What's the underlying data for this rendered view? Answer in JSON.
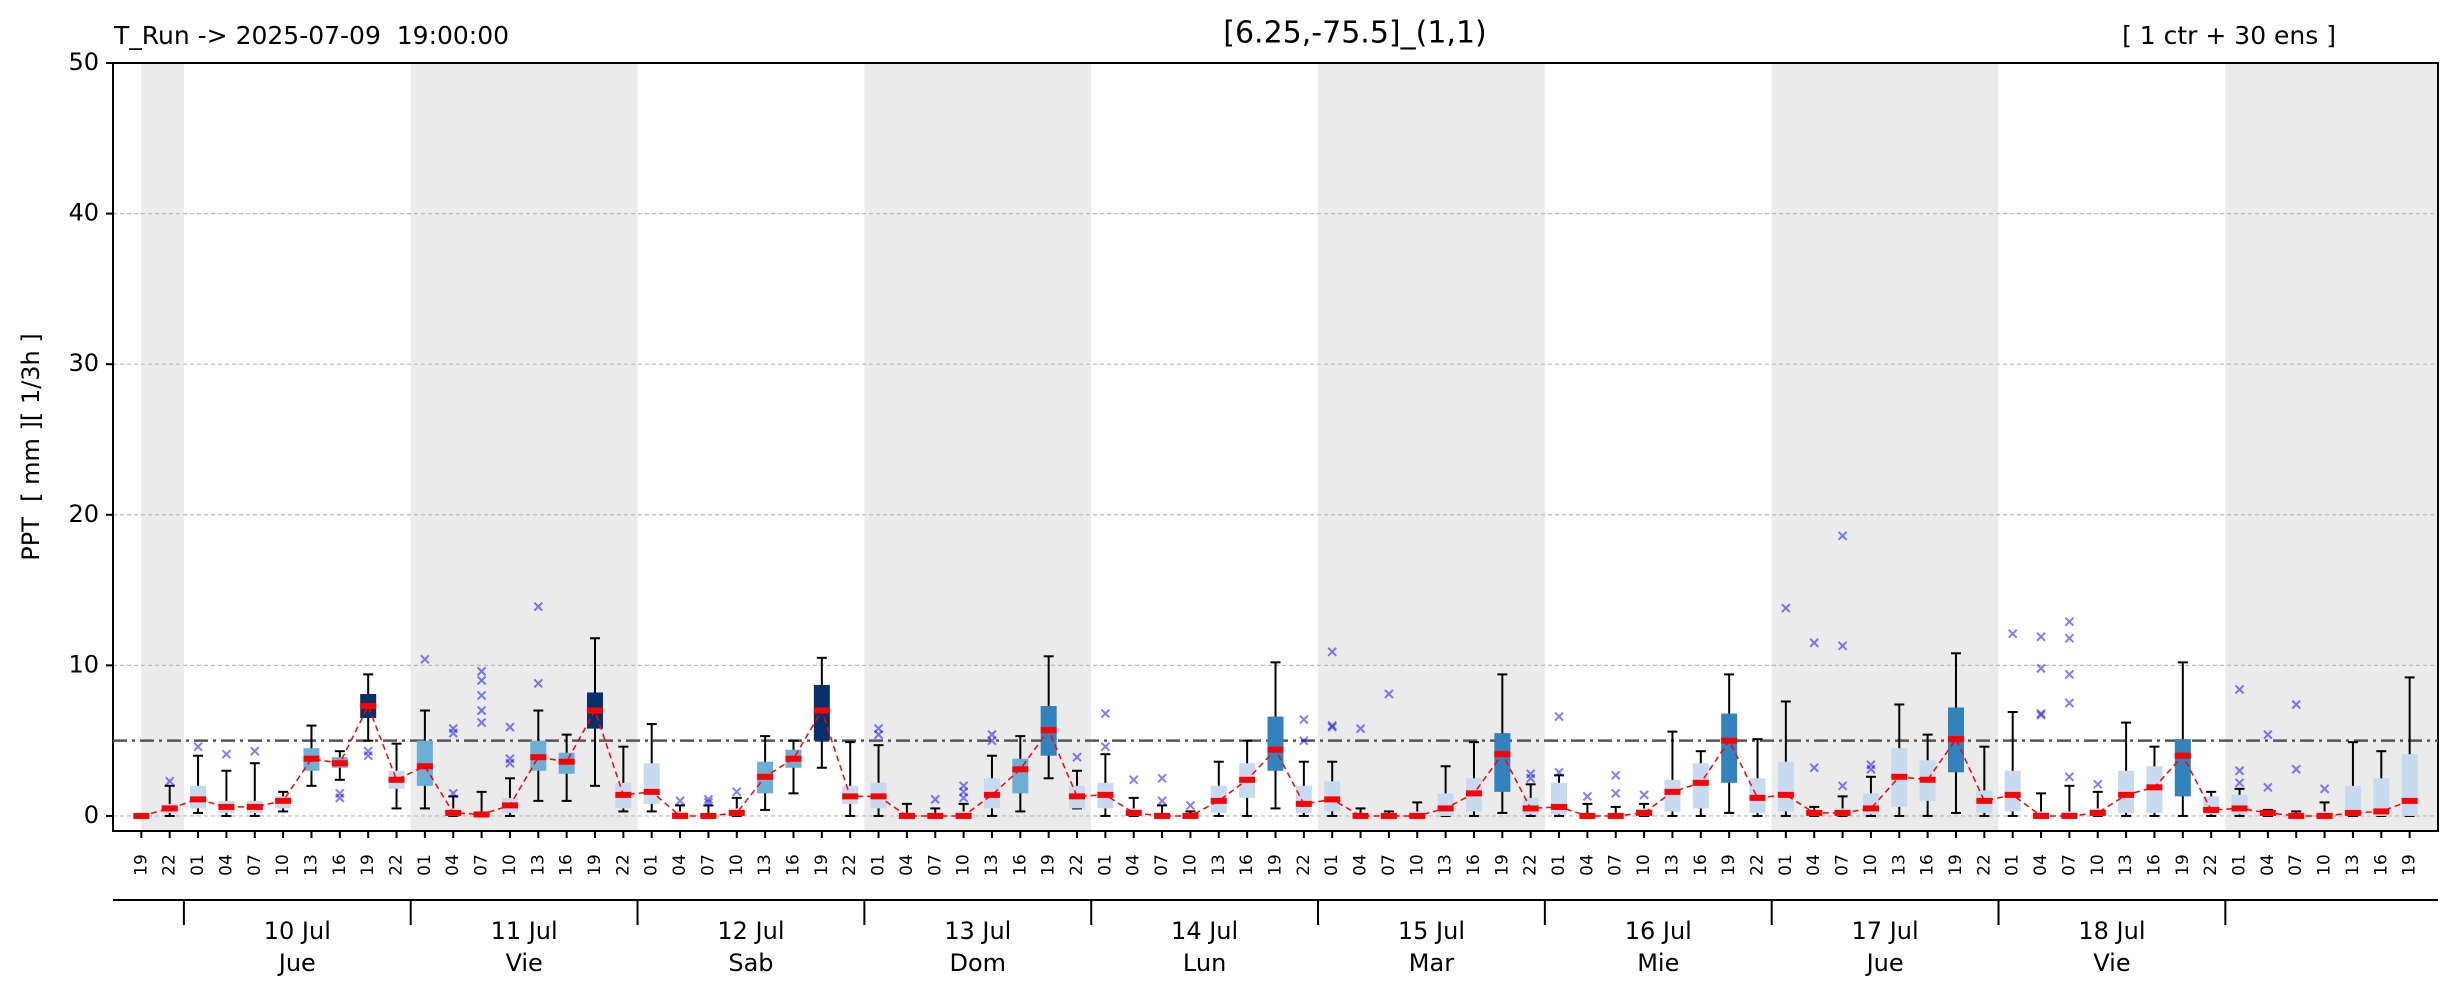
{
  "chart_data": {
    "type": "box",
    "title": "[6.25,-75.5]_(1,1)",
    "run_label": "T_Run -> 2025-07-09  19:00:00",
    "ensemble_label": "[ 1 ctr + 30 ens ]",
    "y_label": "PPT  [ mm ][ 1/3h ]",
    "ylim": [
      -1,
      50
    ],
    "yticks": [
      0,
      10,
      20,
      30,
      40,
      50
    ],
    "grid": true,
    "threshold": 5,
    "threshold_color": "#555555",
    "median_color": "#ff0000",
    "outlier_color": "#0000ff",
    "whisker_color": "#000000",
    "categories": [
      "19",
      "22",
      "01",
      "04",
      "07",
      "10",
      "13",
      "16",
      "19",
      "22",
      "01",
      "04",
      "07",
      "10",
      "13",
      "16",
      "19",
      "22",
      "01",
      "04",
      "07",
      "10",
      "13",
      "16",
      "19",
      "22",
      "01",
      "04",
      "07",
      "10",
      "13",
      "16",
      "19",
      "22",
      "01",
      "04",
      "07",
      "10",
      "13",
      "16",
      "19",
      "22",
      "01",
      "04",
      "07",
      "10",
      "13",
      "16",
      "19",
      "22",
      "01",
      "04",
      "07",
      "10",
      "13",
      "16",
      "19",
      "22",
      "01",
      "04",
      "07",
      "10",
      "13",
      "16",
      "19",
      "22",
      "01",
      "04",
      "07",
      "10",
      "13",
      "16",
      "19",
      "22",
      "01",
      "04",
      "07",
      "10",
      "13",
      "16",
      "19"
    ],
    "days": [
      {
        "date": "10 Jul",
        "weekday": "Jue"
      },
      {
        "date": "11 Jul",
        "weekday": "Vie"
      },
      {
        "date": "12 Jul",
        "weekday": "Sab"
      },
      {
        "date": "13 Jul",
        "weekday": "Dom"
      },
      {
        "date": "14 Jul",
        "weekday": "Lun"
      },
      {
        "date": "15 Jul",
        "weekday": "Mar"
      },
      {
        "date": "16 Jul",
        "weekday": "Mie"
      },
      {
        "date": "17 Jul",
        "weekday": "Jue"
      },
      {
        "date": "18 Jul",
        "weekday": "Vie"
      }
    ],
    "median": [
      0,
      0.5,
      1.1,
      0.6,
      0.6,
      1,
      3.8,
      3.5,
      7.3,
      2.4,
      3.3,
      0.2,
      0.1,
      0.7,
      3.9,
      3.6,
      7,
      1.4,
      1.6,
      0,
      0,
      0.2,
      2.6,
      3.8,
      7,
      1.3,
      1.3,
      0,
      0,
      0,
      1.4,
      3.1,
      5.7,
      1.3,
      1.4,
      0.2,
      0,
      0,
      1,
      2.4,
      4.4,
      0.8,
      1.1,
      0,
      0,
      0,
      0.5,
      1.5,
      4.1,
      0.5,
      0.6,
      0,
      0,
      0.2,
      1.6,
      2.2,
      5,
      1.2,
      1.4,
      0.2,
      0.2,
      0.5,
      2.6,
      2.4,
      5.1,
      1,
      1.4,
      0,
      0,
      0.2,
      1.4,
      1.9,
      4,
      0.4,
      0.5,
      0.2,
      0,
      0,
      0.2,
      0.3,
      1
    ],
    "q1": [
      0,
      0.2,
      0.5,
      0.2,
      0.2,
      0.5,
      3,
      3.2,
      6.5,
      1.8,
      2,
      0,
      0,
      0.2,
      3,
      2.8,
      5.8,
      0.5,
      0.8,
      0,
      0,
      0,
      1.5,
      3.2,
      5,
      0.8,
      0.5,
      0,
      0,
      0,
      0.5,
      1.5,
      4,
      0.5,
      0.5,
      0,
      0,
      0,
      0.2,
      1.2,
      3,
      0.2,
      0.3,
      0,
      0,
      0,
      0,
      0.3,
      1.6,
      0.1,
      0.1,
      0,
      0,
      0,
      0.3,
      0.5,
      2.2,
      0.2,
      0.3,
      0,
      0,
      0.1,
      0.6,
      1,
      2.9,
      0.2,
      0.3,
      0,
      0,
      0,
      0.2,
      0.2,
      1.3,
      0.1,
      0.1,
      0,
      0,
      0,
      0,
      0,
      0
    ],
    "q3": [
      0,
      0.8,
      2,
      1,
      1,
      1.3,
      4.5,
      3.9,
      8.1,
      3,
      5,
      0.5,
      0.3,
      1.2,
      5,
      4.2,
      8.2,
      2.2,
      3.5,
      0.3,
      0.2,
      0.5,
      3.6,
      4.4,
      8.7,
      2,
      2.2,
      0.2,
      0.2,
      0.3,
      2.5,
      3.8,
      7.3,
      2,
      2.2,
      0.5,
      0.2,
      0.1,
      2,
      3.5,
      6.6,
      2,
      2.3,
      0.2,
      0.1,
      0.3,
      1.5,
      2.5,
      5.5,
      1.2,
      2.2,
      0.2,
      0.2,
      0.5,
      2.4,
      3.5,
      6.8,
      2.5,
      3.6,
      0.4,
      0.5,
      1.5,
      4.5,
      3.7,
      7.2,
      1.7,
      3,
      0.3,
      0.3,
      0.5,
      3,
      3.3,
      5.1,
      1.3,
      1.4,
      0.2,
      0.1,
      0.3,
      2,
      2.5,
      4.1
    ],
    "whisker_low": [
      0,
      0,
      0.2,
      0,
      0,
      0.3,
      2,
      2.4,
      5,
      0.5,
      0.5,
      0,
      0,
      0,
      1,
      1,
      2,
      0.3,
      0.3,
      0,
      0,
      0,
      0.4,
      1.5,
      3.2,
      0,
      0,
      0,
      0,
      0,
      0,
      0.3,
      2.5,
      0.5,
      0,
      0,
      0,
      0,
      0,
      0,
      0.5,
      0,
      0,
      0,
      0,
      0,
      0,
      0,
      0.2,
      0,
      0,
      0,
      0,
      0,
      0,
      0,
      0.2,
      0,
      0,
      0,
      0,
      0,
      0,
      0,
      0.2,
      0,
      0,
      0,
      0,
      0,
      0,
      0,
      0,
      0,
      0,
      0,
      0,
      0,
      0,
      0,
      0
    ],
    "whisker_high": [
      0,
      2,
      4,
      3,
      3.5,
      1.6,
      6,
      4.3,
      9.4,
      4.8,
      7,
      1.3,
      1.6,
      2.5,
      7,
      5.4,
      11.8,
      4.6,
      6.1,
      0.7,
      0.7,
      1.2,
      5.3,
      5,
      10.5,
      4.9,
      4.7,
      0.8,
      0.5,
      0.8,
      4,
      5.3,
      10.6,
      3,
      4.1,
      1.2,
      0.7,
      0.3,
      3.6,
      5,
      10.2,
      3.6,
      3.6,
      0.5,
      0.3,
      0.9,
      3.3,
      4.9,
      9.4,
      2.1,
      2.7,
      0.8,
      0.6,
      0.8,
      5.6,
      4.3,
      9.4,
      5.1,
      7.6,
      0.6,
      1.3,
      2.6,
      7.4,
      5.4,
      10.8,
      4.6,
      6.9,
      1.5,
      2,
      1.6,
      6.2,
      4.6,
      10.2,
      1.6,
      1.8,
      0.4,
      0.3,
      0.9,
      4.9,
      4.3,
      9.2
    ],
    "outliers": [
      [],
      [
        2.3
      ],
      [
        4.6
      ],
      [
        4.1
      ],
      [
        4.3
      ],
      [],
      [],
      [
        1.2,
        1.5
      ],
      [
        4,
        4.3
      ],
      [],
      [
        10.4
      ],
      [
        1.5,
        5.5,
        5.8
      ],
      [
        6.2,
        7,
        8,
        9,
        9.6
      ],
      [
        3.5,
        3.8,
        5.9
      ],
      [
        8.8,
        13.9
      ],
      [],
      [],
      [],
      [],
      [
        1
      ],
      [
        0.9,
        1.1
      ],
      [
        1.6
      ],
      [],
      [],
      [],
      [],
      [
        5.4,
        5.8
      ],
      [],
      [
        1.1
      ],
      [
        1.2,
        1.6,
        2
      ],
      [
        5,
        5.4
      ],
      [],
      [],
      [
        3.9
      ],
      [
        4.6,
        6.8
      ],
      [
        2.4
      ],
      [
        1,
        2.5
      ],
      [
        0.7
      ],
      [],
      [],
      [],
      [
        5,
        6.4
      ],
      [
        5.9,
        6,
        10.9
      ],
      [
        5.8
      ],
      [
        8.1
      ],
      [],
      [],
      [],
      [],
      [
        2.5,
        2.8
      ],
      [
        2.9,
        6.6
      ],
      [
        1.3
      ],
      [
        1.5,
        2.7
      ],
      [
        1.4
      ],
      [],
      [],
      [],
      [],
      [
        13.8
      ],
      [
        3.2,
        11.5
      ],
      [
        2,
        11.3,
        18.6
      ],
      [
        3.1,
        3.4
      ],
      [],
      [],
      [],
      [],
      [
        12.1
      ],
      [
        6.7,
        6.8,
        9.8,
        11.9
      ],
      [
        2.6,
        7.5,
        9.4,
        11.8,
        12.9
      ],
      [
        2.1
      ],
      [],
      [],
      [],
      [],
      [
        2.2,
        3,
        8.4
      ],
      [
        1.9,
        5.4
      ],
      [
        3.1,
        7.4
      ],
      [
        1.8
      ],
      [],
      [],
      []
    ],
    "colors": [
      "#c6dbef",
      "#c6dbef",
      "#c6dbef",
      "#c6dbef",
      "#c6dbef",
      "#c6dbef",
      "#6baed6",
      "#6baed6",
      "#08306b",
      "#c6dbef",
      "#6baed6",
      "#c6dbef",
      "#c6dbef",
      "#c6dbef",
      "#6baed6",
      "#6baed6",
      "#08306b",
      "#c6dbef",
      "#c6dbef",
      "#c6dbef",
      "#c6dbef",
      "#c6dbef",
      "#6baed6",
      "#6baed6",
      "#08306b",
      "#c6dbef",
      "#c6dbef",
      "#c6dbef",
      "#c6dbef",
      "#c6dbef",
      "#c6dbef",
      "#6baed6",
      "#3182bd",
      "#c6dbef",
      "#c6dbef",
      "#c6dbef",
      "#c6dbef",
      "#c6dbef",
      "#c6dbef",
      "#c6dbef",
      "#3182bd",
      "#c6dbef",
      "#c6dbef",
      "#c6dbef",
      "#c6dbef",
      "#c6dbef",
      "#c6dbef",
      "#c6dbef",
      "#3182bd",
      "#c6dbef",
      "#c6dbef",
      "#c6dbef",
      "#c6dbef",
      "#c6dbef",
      "#c6dbef",
      "#c6dbef",
      "#3182bd",
      "#c6dbef",
      "#c6dbef",
      "#c6dbef",
      "#c6dbef",
      "#c6dbef",
      "#c6dbef",
      "#c6dbef",
      "#3182bd",
      "#c6dbef",
      "#c6dbef",
      "#c6dbef",
      "#c6dbef",
      "#c6dbef",
      "#c6dbef",
      "#c6dbef",
      "#3182bd",
      "#c6dbef",
      "#c6dbef",
      "#c6dbef",
      "#c6dbef",
      "#c6dbef",
      "#c6dbef",
      "#c6dbef",
      "#c6dbef"
    ]
  }
}
